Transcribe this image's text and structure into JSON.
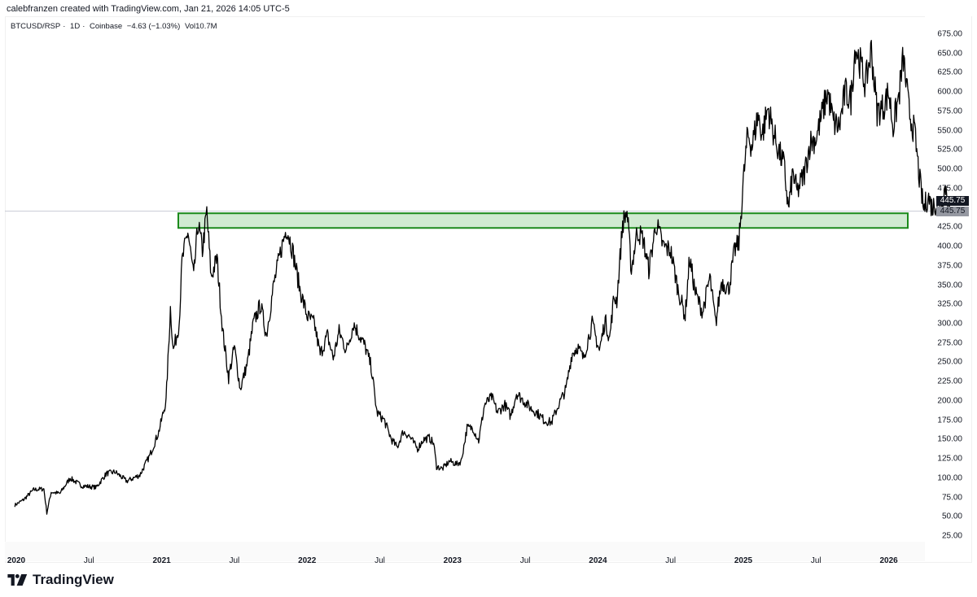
{
  "header": {
    "credit": "calebfranzen created with TradingView.com, Jan 21, 2026 14:05 UTC-5"
  },
  "legend": {
    "symbol": "BTCUSD/RSP",
    "interval": "1D",
    "exchange": "Coinbase",
    "change": "−4.63 (−1.03%)",
    "volume": "Vol10.7M"
  },
  "price_badges": {
    "last": "445.75",
    "marker": "445.75"
  },
  "branding": {
    "logo_text": "TradingView"
  },
  "colors": {
    "line": "#000000",
    "zone_fill": "#c8e6c9",
    "zone_border": "#1b8a1b",
    "price_line": "#c8ccd4"
  },
  "chart_data": {
    "type": "line",
    "title": "BTCUSD/RSP · 1D · Coinbase",
    "xlabel": "",
    "ylabel": "",
    "ylim": [
      25,
      675
    ],
    "grid": false,
    "y_ticks": [
      "675.00",
      "650.00",
      "625.00",
      "600.00",
      "575.00",
      "550.00",
      "525.00",
      "500.00",
      "475.00",
      "425.00",
      "400.00",
      "375.00",
      "350.00",
      "325.00",
      "300.00",
      "275.00",
      "250.00",
      "225.00",
      "200.00",
      "175.00",
      "150.00",
      "125.00",
      "100.00",
      "75.00",
      "50.00",
      "25.00"
    ],
    "x_ticks": [
      {
        "label": "2020",
        "t": 2020.0,
        "year": true
      },
      {
        "label": "Jul",
        "t": 2020.5,
        "year": false
      },
      {
        "label": "2021",
        "t": 2021.0,
        "year": true
      },
      {
        "label": "Jul",
        "t": 2021.5,
        "year": false
      },
      {
        "label": "2022",
        "t": 2022.0,
        "year": true
      },
      {
        "label": "Jul",
        "t": 2022.5,
        "year": false
      },
      {
        "label": "2023",
        "t": 2023.0,
        "year": true
      },
      {
        "label": "Jul",
        "t": 2023.5,
        "year": false
      },
      {
        "label": "2024",
        "t": 2024.0,
        "year": true
      },
      {
        "label": "Jul",
        "t": 2024.5,
        "year": false
      },
      {
        "label": "2025",
        "t": 2025.0,
        "year": true
      },
      {
        "label": "Jul",
        "t": 2025.5,
        "year": false
      },
      {
        "label": "2026",
        "t": 2026.0,
        "year": true
      }
    ],
    "last_price": 445.75,
    "resistance_zone": {
      "low": 424,
      "high": 443,
      "from": 2021.12,
      "to": 2026.12
    },
    "series": [
      {
        "name": "BTCUSD/RSP",
        "points": [
          [
            2019.99,
            65
          ],
          [
            2020.05,
            72
          ],
          [
            2020.12,
            85
          ],
          [
            2020.19,
            86
          ],
          [
            2020.21,
            55
          ],
          [
            2020.24,
            82
          ],
          [
            2020.3,
            80
          ],
          [
            2020.37,
            100
          ],
          [
            2020.45,
            90
          ],
          [
            2020.55,
            88
          ],
          [
            2020.62,
            106
          ],
          [
            2020.68,
            108
          ],
          [
            2020.76,
            96
          ],
          [
            2020.85,
            104
          ],
          [
            2020.92,
            130
          ],
          [
            2020.98,
            160
          ],
          [
            2021.03,
            200
          ],
          [
            2021.06,
            320
          ],
          [
            2021.08,
            265
          ],
          [
            2021.12,
            300
          ],
          [
            2021.14,
            380
          ],
          [
            2021.18,
            420
          ],
          [
            2021.22,
            360
          ],
          [
            2021.25,
            430
          ],
          [
            2021.28,
            395
          ],
          [
            2021.31,
            445
          ],
          [
            2021.34,
            360
          ],
          [
            2021.38,
            385
          ],
          [
            2021.42,
            290
          ],
          [
            2021.46,
            230
          ],
          [
            2021.5,
            270
          ],
          [
            2021.54,
            215
          ],
          [
            2021.59,
            250
          ],
          [
            2021.63,
            300
          ],
          [
            2021.68,
            325
          ],
          [
            2021.72,
            285
          ],
          [
            2021.77,
            350
          ],
          [
            2021.82,
            395
          ],
          [
            2021.86,
            425
          ],
          [
            2021.9,
            395
          ],
          [
            2021.95,
            345
          ],
          [
            2022.0,
            310
          ],
          [
            2022.05,
            300
          ],
          [
            2022.09,
            260
          ],
          [
            2022.14,
            285
          ],
          [
            2022.18,
            255
          ],
          [
            2022.22,
            290
          ],
          [
            2022.27,
            265
          ],
          [
            2022.32,
            300
          ],
          [
            2022.36,
            285
          ],
          [
            2022.4,
            270
          ],
          [
            2022.44,
            245
          ],
          [
            2022.48,
            185
          ],
          [
            2022.53,
            175
          ],
          [
            2022.58,
            150
          ],
          [
            2022.62,
            140
          ],
          [
            2022.66,
            160
          ],
          [
            2022.7,
            155
          ],
          [
            2022.76,
            138
          ],
          [
            2022.8,
            150
          ],
          [
            2022.84,
            152
          ],
          [
            2022.87,
            145
          ],
          [
            2022.89,
            115
          ],
          [
            2022.93,
            112
          ],
          [
            2022.98,
            122
          ],
          [
            2023.03,
            118
          ],
          [
            2023.06,
            122
          ],
          [
            2023.1,
            165
          ],
          [
            2023.14,
            165
          ],
          [
            2023.18,
            148
          ],
          [
            2023.22,
            195
          ],
          [
            2023.27,
            205
          ],
          [
            2023.31,
            185
          ],
          [
            2023.36,
            195
          ],
          [
            2023.4,
            180
          ],
          [
            2023.44,
            210
          ],
          [
            2023.49,
            200
          ],
          [
            2023.54,
            190
          ],
          [
            2023.58,
            185
          ],
          [
            2023.63,
            175
          ],
          [
            2023.68,
            172
          ],
          [
            2023.73,
            195
          ],
          [
            2023.78,
            215
          ],
          [
            2023.82,
            260
          ],
          [
            2023.86,
            270
          ],
          [
            2023.9,
            255
          ],
          [
            2023.96,
            300
          ],
          [
            2024.01,
            265
          ],
          [
            2024.05,
            305
          ],
          [
            2024.08,
            280
          ],
          [
            2024.11,
            335
          ],
          [
            2024.13,
            330
          ],
          [
            2024.17,
            430
          ],
          [
            2024.2,
            445
          ],
          [
            2024.23,
            370
          ],
          [
            2024.27,
            420
          ],
          [
            2024.31,
            410
          ],
          [
            2024.35,
            370
          ],
          [
            2024.4,
            430
          ],
          [
            2024.45,
            400
          ],
          [
            2024.5,
            395
          ],
          [
            2024.55,
            345
          ],
          [
            2024.6,
            310
          ],
          [
            2024.63,
            385
          ],
          [
            2024.67,
            340
          ],
          [
            2024.72,
            315
          ],
          [
            2024.77,
            360
          ],
          [
            2024.81,
            300
          ],
          [
            2024.85,
            355
          ],
          [
            2024.9,
            345
          ],
          [
            2024.94,
            395
          ],
          [
            2024.97,
            405
          ],
          [
            2025.0,
            485
          ],
          [
            2025.03,
            545
          ],
          [
            2025.06,
            530
          ],
          [
            2025.1,
            570
          ],
          [
            2025.13,
            545
          ],
          [
            2025.17,
            580
          ],
          [
            2025.21,
            545
          ],
          [
            2025.25,
            520
          ],
          [
            2025.28,
            505
          ],
          [
            2025.31,
            448
          ],
          [
            2025.34,
            495
          ],
          [
            2025.37,
            470
          ],
          [
            2025.42,
            495
          ],
          [
            2025.46,
            535
          ],
          [
            2025.5,
            540
          ],
          [
            2025.54,
            570
          ],
          [
            2025.58,
            600
          ],
          [
            2025.62,
            560
          ],
          [
            2025.66,
            555
          ],
          [
            2025.7,
            600
          ],
          [
            2025.74,
            590
          ],
          [
            2025.77,
            660
          ],
          [
            2025.8,
            640
          ],
          [
            2025.84,
            610
          ],
          [
            2025.88,
            655
          ],
          [
            2025.92,
            575
          ],
          [
            2025.96,
            580
          ],
          [
            2026.0,
            600
          ],
          [
            2026.03,
            555
          ],
          [
            2026.07,
            595
          ],
          [
            2026.1,
            645
          ],
          [
            2026.14,
            575
          ],
          [
            2026.18,
            545
          ],
          [
            2026.21,
            490
          ],
          [
            2026.24,
            448
          ],
          [
            2026.27,
            465
          ],
          [
            2026.3,
            450
          ],
          [
            2026.33,
            458
          ],
          [
            2026.36,
            455
          ],
          [
            2026.39,
            478
          ],
          [
            2026.42,
            445.75
          ]
        ]
      }
    ]
  }
}
